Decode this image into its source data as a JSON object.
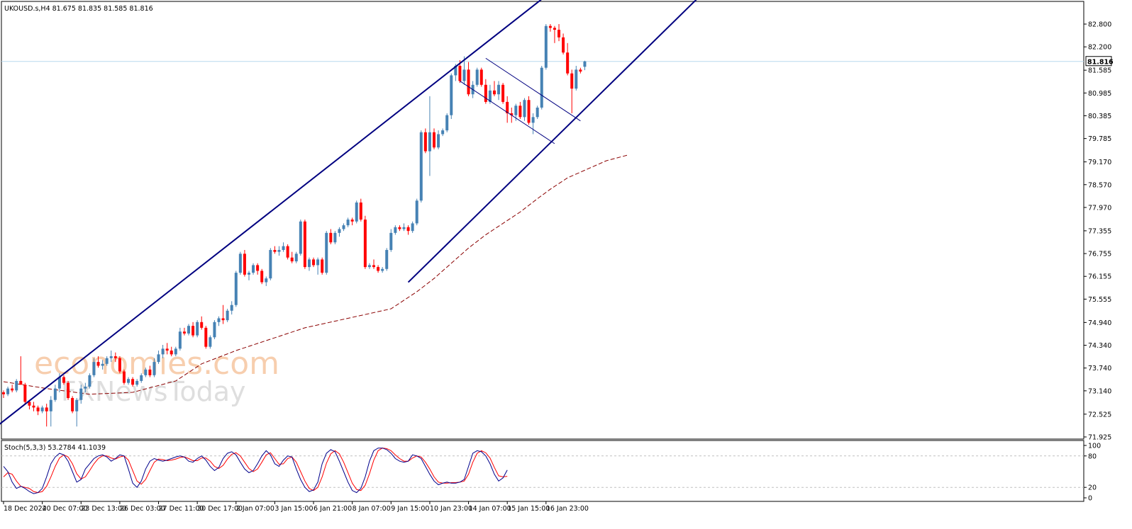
{
  "chart_data": {
    "type": "candlestick",
    "header": "UKOUSD.s,H4  81.675 81.835 81.585 81.816",
    "current_price": "81.816",
    "current_price_value": 81.816,
    "price_axis": {
      "ylim": [
        71.925,
        82.8
      ],
      "ticks": [
        "82.800",
        "82.200",
        "81.585",
        "80.985",
        "80.385",
        "79.785",
        "79.170",
        "78.570",
        "77.970",
        "77.355",
        "76.755",
        "76.155",
        "75.555",
        "74.940",
        "74.340",
        "73.740",
        "73.140",
        "72.525",
        "71.925"
      ]
    },
    "time_axis": {
      "labels": [
        "18 Dec 2024",
        "20 Dec 07:00",
        "23 Dec 13:00",
        "26 Dec 03:00",
        "27 Dec 11:00",
        "30 Dec 17:00",
        "2 Jan 07:00",
        "3 Jan 15:00",
        "6 Jan 21:00",
        "8 Jan 07:00",
        "9 Jan 15:00",
        "10 Jan 23:00",
        "14 Jan 07:00",
        "15 Jan 15:00",
        "16 Jan 23:00"
      ],
      "label_bar_index": [
        0,
        9,
        18,
        27,
        36,
        45,
        54,
        63,
        72,
        81,
        90,
        99,
        108,
        117,
        126
      ]
    },
    "candles": [
      [
        73.1,
        73.15,
        72.95,
        73.05
      ],
      [
        73.05,
        73.25,
        73.0,
        73.2
      ],
      [
        73.2,
        73.3,
        73.1,
        73.15
      ],
      [
        73.15,
        73.45,
        73.1,
        73.4
      ],
      [
        73.4,
        74.05,
        73.35,
        73.3
      ],
      [
        73.3,
        73.35,
        72.8,
        72.85
      ],
      [
        72.85,
        72.9,
        72.65,
        72.75
      ],
      [
        72.75,
        72.85,
        72.6,
        72.7
      ],
      [
        72.7,
        72.75,
        72.5,
        72.6
      ],
      [
        72.6,
        72.75,
        72.55,
        72.7
      ],
      [
        72.7,
        72.8,
        72.2,
        72.6
      ],
      [
        72.6,
        73.0,
        72.2,
        72.9
      ],
      [
        72.9,
        73.3,
        72.85,
        73.2
      ],
      [
        73.2,
        73.6,
        73.1,
        73.5
      ],
      [
        73.5,
        73.55,
        73.3,
        73.35
      ],
      [
        73.35,
        73.4,
        72.9,
        72.95
      ],
      [
        72.95,
        73.0,
        72.55,
        72.6
      ],
      [
        72.6,
        72.95,
        72.2,
        72.9
      ],
      [
        72.9,
        73.3,
        72.8,
        73.2
      ],
      [
        73.2,
        73.35,
        73.1,
        73.25
      ],
      [
        73.25,
        73.6,
        73.2,
        73.55
      ],
      [
        73.55,
        74.0,
        73.5,
        73.9
      ],
      [
        73.9,
        74.05,
        73.75,
        73.8
      ],
      [
        73.8,
        73.95,
        73.7,
        73.85
      ],
      [
        73.85,
        74.05,
        73.8,
        74.0
      ],
      [
        74.0,
        74.2,
        73.9,
        74.05
      ],
      [
        74.05,
        74.15,
        73.9,
        74.0
      ],
      [
        74.0,
        74.05,
        73.6,
        73.65
      ],
      [
        73.65,
        73.7,
        73.3,
        73.35
      ],
      [
        73.35,
        73.5,
        73.3,
        73.45
      ],
      [
        73.45,
        73.5,
        73.25,
        73.3
      ],
      [
        73.3,
        73.45,
        73.25,
        73.4
      ],
      [
        73.4,
        73.6,
        73.35,
        73.55
      ],
      [
        73.55,
        73.75,
        73.5,
        73.7
      ],
      [
        73.7,
        73.8,
        73.5,
        73.55
      ],
      [
        73.55,
        74.0,
        73.5,
        73.9
      ],
      [
        73.9,
        74.2,
        73.85,
        74.1
      ],
      [
        74.1,
        74.35,
        74.0,
        74.25
      ],
      [
        74.25,
        74.4,
        74.1,
        74.2
      ],
      [
        74.2,
        74.3,
        74.05,
        74.1
      ],
      [
        74.1,
        74.3,
        74.05,
        74.25
      ],
      [
        74.25,
        74.8,
        74.2,
        74.7
      ],
      [
        74.7,
        74.8,
        74.6,
        74.65
      ],
      [
        74.65,
        74.9,
        74.6,
        74.85
      ],
      [
        74.85,
        74.95,
        74.55,
        74.6
      ],
      [
        74.6,
        75.0,
        74.55,
        74.95
      ],
      [
        74.95,
        75.1,
        74.75,
        74.8
      ],
      [
        74.8,
        74.85,
        74.25,
        74.3
      ],
      [
        74.3,
        74.6,
        74.25,
        74.55
      ],
      [
        74.55,
        75.0,
        74.5,
        74.95
      ],
      [
        74.95,
        75.1,
        74.85,
        75.05
      ],
      [
        75.05,
        75.4,
        74.9,
        75.0
      ],
      [
        75.0,
        75.3,
        74.95,
        75.25
      ],
      [
        75.25,
        75.5,
        75.15,
        75.4
      ],
      [
        75.4,
        76.3,
        75.35,
        76.25
      ],
      [
        76.25,
        76.8,
        76.2,
        76.75
      ],
      [
        76.75,
        76.85,
        76.15,
        76.2
      ],
      [
        76.2,
        76.3,
        76.05,
        76.25
      ],
      [
        76.25,
        76.5,
        76.2,
        76.45
      ],
      [
        76.45,
        76.5,
        76.2,
        76.3
      ],
      [
        76.3,
        76.35,
        75.95,
        76.0
      ],
      [
        76.0,
        76.15,
        75.9,
        76.1
      ],
      [
        76.1,
        76.9,
        76.05,
        76.85
      ],
      [
        76.85,
        76.95,
        76.75,
        76.8
      ],
      [
        76.8,
        76.95,
        76.7,
        76.85
      ],
      [
        76.85,
        77.05,
        76.8,
        76.95
      ],
      [
        76.95,
        77.0,
        76.6,
        76.65
      ],
      [
        76.65,
        76.8,
        76.5,
        76.55
      ],
      [
        76.55,
        76.8,
        76.5,
        76.75
      ],
      [
        76.75,
        77.65,
        76.7,
        77.6
      ],
      [
        77.6,
        77.65,
        76.35,
        76.4
      ],
      [
        76.4,
        76.65,
        76.3,
        76.6
      ],
      [
        76.6,
        76.65,
        76.4,
        76.45
      ],
      [
        76.45,
        76.65,
        76.2,
        76.6
      ],
      [
        76.6,
        76.65,
        76.2,
        76.25
      ],
      [
        76.25,
        77.35,
        76.2,
        77.3
      ],
      [
        77.3,
        77.4,
        77.0,
        77.05
      ],
      [
        77.05,
        77.35,
        77.0,
        77.3
      ],
      [
        77.3,
        77.45,
        77.2,
        77.4
      ],
      [
        77.4,
        77.55,
        77.35,
        77.5
      ],
      [
        77.5,
        77.7,
        77.45,
        77.65
      ],
      [
        77.65,
        77.7,
        77.5,
        77.6
      ],
      [
        77.6,
        78.15,
        77.55,
        78.1
      ],
      [
        78.1,
        78.2,
        77.6,
        77.65
      ],
      [
        77.65,
        77.75,
        76.35,
        76.4
      ],
      [
        76.4,
        76.5,
        76.35,
        76.45
      ],
      [
        76.45,
        76.6,
        76.35,
        76.4
      ],
      [
        76.4,
        76.45,
        76.25,
        76.3
      ],
      [
        76.3,
        76.4,
        76.25,
        76.35
      ],
      [
        76.35,
        76.9,
        76.3,
        76.85
      ],
      [
        76.85,
        77.4,
        76.8,
        77.3
      ],
      [
        77.3,
        77.5,
        77.25,
        77.45
      ],
      [
        77.45,
        77.5,
        77.35,
        77.4
      ],
      [
        77.4,
        77.55,
        77.35,
        77.45
      ],
      [
        77.45,
        77.5,
        77.25,
        77.35
      ],
      [
        77.35,
        77.6,
        77.3,
        77.55
      ],
      [
        77.55,
        78.2,
        77.5,
        78.15
      ],
      [
        78.15,
        80.0,
        78.1,
        79.95
      ],
      [
        79.95,
        80.05,
        79.4,
        79.45
      ],
      [
        79.45,
        80.9,
        78.8,
        79.95
      ],
      [
        79.95,
        80.05,
        79.5,
        79.55
      ],
      [
        79.55,
        80.0,
        79.5,
        79.9
      ],
      [
        79.9,
        80.05,
        79.85,
        80.0
      ],
      [
        80.0,
        80.45,
        79.95,
        80.4
      ],
      [
        80.4,
        81.5,
        80.3,
        81.45
      ],
      [
        81.45,
        81.75,
        81.3,
        81.7
      ],
      [
        81.7,
        81.85,
        81.25,
        81.3
      ],
      [
        81.3,
        81.95,
        81.2,
        81.6
      ],
      [
        81.6,
        81.8,
        80.9,
        80.95
      ],
      [
        80.95,
        81.3,
        80.85,
        81.2
      ],
      [
        81.2,
        81.65,
        81.15,
        81.6
      ],
      [
        81.6,
        81.65,
        81.15,
        81.2
      ],
      [
        81.2,
        81.35,
        80.7,
        80.75
      ],
      [
        80.75,
        81.2,
        80.7,
        81.05
      ],
      [
        81.05,
        81.3,
        80.9,
        80.95
      ],
      [
        80.95,
        81.3,
        80.8,
        81.2
      ],
      [
        81.2,
        81.25,
        80.7,
        80.75
      ],
      [
        80.75,
        80.9,
        80.2,
        80.45
      ],
      [
        80.45,
        80.6,
        80.2,
        80.4
      ],
      [
        80.4,
        80.7,
        80.25,
        80.65
      ],
      [
        80.65,
        80.75,
        80.3,
        80.35
      ],
      [
        80.35,
        80.85,
        80.25,
        80.8
      ],
      [
        80.8,
        80.9,
        80.15,
        80.2
      ],
      [
        80.2,
        80.45,
        79.9,
        80.35
      ],
      [
        80.35,
        80.65,
        80.3,
        80.6
      ],
      [
        80.6,
        81.7,
        80.55,
        81.65
      ],
      [
        81.65,
        82.8,
        81.6,
        82.75
      ],
      [
        82.75,
        82.8,
        82.6,
        82.7
      ],
      [
        82.7,
        82.75,
        82.3,
        82.65
      ],
      [
        82.65,
        82.8,
        82.35,
        82.45
      ],
      [
        82.45,
        82.55,
        82.0,
        82.05
      ],
      [
        82.05,
        82.3,
        81.45,
        81.5
      ],
      [
        81.5,
        81.6,
        80.45,
        81.1
      ],
      [
        81.1,
        81.7,
        81.05,
        81.6
      ],
      [
        81.6,
        81.65,
        81.5,
        81.55
      ],
      [
        81.675,
        81.835,
        81.585,
        81.816
      ]
    ],
    "moving_average": {
      "style": "dashed",
      "color": "#8b0000",
      "points": [
        [
          0,
          73.38
        ],
        [
          10,
          73.2
        ],
        [
          20,
          73.05
        ],
        [
          30,
          73.1
        ],
        [
          40,
          73.4
        ],
        [
          46,
          73.85
        ],
        [
          54,
          74.2
        ],
        [
          62,
          74.5
        ],
        [
          70,
          74.8
        ],
        [
          78,
          75.0
        ],
        [
          82,
          75.1
        ],
        [
          90,
          75.3
        ],
        [
          96,
          75.75
        ],
        [
          100,
          76.1
        ],
        [
          104,
          76.5
        ],
        [
          108,
          76.9
        ],
        [
          112,
          77.25
        ],
        [
          116,
          77.55
        ],
        [
          120,
          77.85
        ],
        [
          124,
          78.2
        ],
        [
          127,
          78.45
        ],
        [
          131,
          78.75
        ],
        [
          136,
          79.0
        ],
        [
          140,
          79.2
        ],
        [
          145,
          79.35
        ]
      ]
    },
    "trendlines": [
      {
        "name": "channel-upper",
        "color": "#000080",
        "from": [
          -5,
          71.9
        ],
        "to": [
          130,
          83.9
        ]
      },
      {
        "name": "channel-lower",
        "color": "#000080",
        "from": [
          94,
          76.0
        ],
        "to": [
          165,
          83.9
        ]
      },
      {
        "name": "flag-upper",
        "color": "#000080",
        "from": [
          112,
          81.9
        ],
        "to": [
          134,
          80.25
        ]
      },
      {
        "name": "flag-lower",
        "color": "#000080",
        "from": [
          106,
          81.3
        ],
        "to": [
          128,
          79.65
        ]
      }
    ],
    "stochastic": {
      "label": "Stoch(5,3,3) 53.2784 41.1039",
      "ylim": [
        0,
        100
      ],
      "ticks": [
        "100",
        "80",
        "20",
        "0"
      ],
      "levels": [
        80,
        20
      ],
      "main_color": "#00008b",
      "signal_color": "#ff0000",
      "main": [
        60,
        50,
        30,
        18,
        22,
        18,
        12,
        8,
        10,
        18,
        40,
        65,
        78,
        85,
        82,
        70,
        50,
        30,
        35,
        55,
        65,
        75,
        80,
        82,
        78,
        70,
        75,
        82,
        80,
        55,
        28,
        20,
        32,
        55,
        70,
        75,
        72,
        70,
        72,
        75,
        78,
        80,
        78,
        70,
        68,
        75,
        80,
        72,
        60,
        52,
        58,
        75,
        85,
        88,
        82,
        68,
        55,
        48,
        52,
        65,
        80,
        90,
        82,
        65,
        60,
        72,
        80,
        78,
        55,
        35,
        20,
        12,
        15,
        30,
        65,
        85,
        92,
        88,
        70,
        50,
        30,
        14,
        10,
        18,
        40,
        70,
        90,
        95,
        95,
        92,
        85,
        75,
        70,
        68,
        70,
        82,
        80,
        75,
        60,
        45,
        32,
        25,
        28,
        30,
        28,
        28,
        30,
        35,
        60,
        85,
        90,
        88,
        80,
        65,
        45,
        32,
        38,
        53
      ],
      "signal": [
        40,
        48,
        45,
        32,
        22,
        20,
        18,
        12,
        10,
        12,
        22,
        40,
        60,
        76,
        82,
        78,
        65,
        46,
        36,
        40,
        52,
        65,
        75,
        80,
        80,
        76,
        74,
        78,
        80,
        72,
        52,
        32,
        26,
        35,
        52,
        68,
        74,
        73,
        71,
        72,
        74,
        77,
        78,
        75,
        71,
        71,
        76,
        76,
        70,
        60,
        56,
        62,
        74,
        83,
        86,
        80,
        68,
        56,
        50,
        55,
        68,
        82,
        86,
        75,
        64,
        65,
        75,
        78,
        68,
        50,
        32,
        18,
        14,
        20,
        40,
        66,
        84,
        90,
        84,
        68,
        48,
        28,
        16,
        14,
        24,
        46,
        72,
        90,
        95,
        94,
        90,
        82,
        75,
        70,
        70,
        76,
        80,
        78,
        68,
        55,
        40,
        30,
        28,
        28,
        29,
        29,
        30,
        32,
        45,
        68,
        85,
        90,
        86,
        76,
        58,
        42,
        40,
        41
      ]
    }
  },
  "watermark": {
    "line1": "economies.com",
    "line2": "FXNewsToday"
  }
}
